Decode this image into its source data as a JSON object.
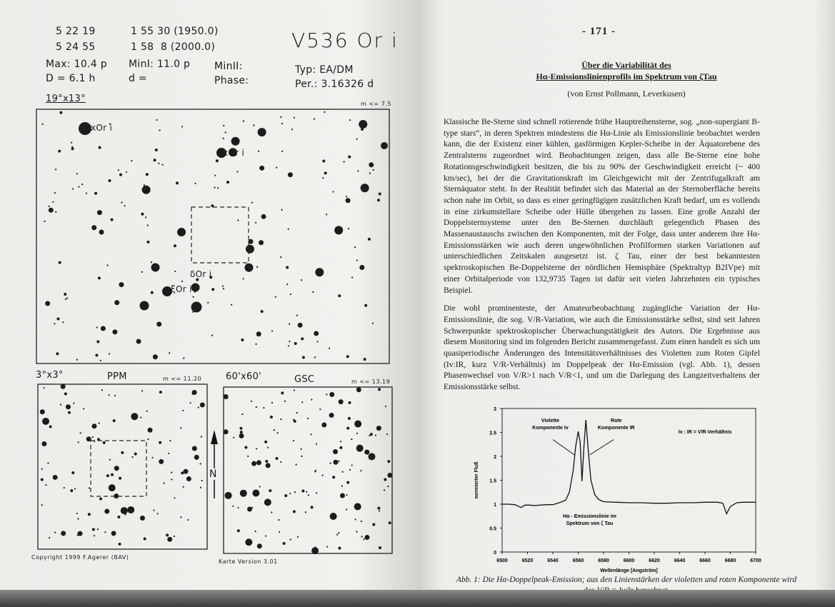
{
  "left_page": {
    "coords": {
      "ra_1950": "5 22 19",
      "ra_2000": "5 24 55",
      "dec_1950": "1 55 30 (1950.0)",
      "dec_2000": "1 58  8 (2000.0)"
    },
    "star_name": "V536 Or i",
    "max": "Max: 10.4 p",
    "min1": "MinI: 11.0 p",
    "min2": "MinII:",
    "duration": "D = 6.1 h",
    "d": "d =",
    "phase": "Phase:",
    "type": "Typ: EA/DM",
    "period": "Per.: 3.16326 d",
    "chart_main": {
      "field": "19°x13°",
      "limit": "m <= 7.5",
      "labels": [
        "xOr i",
        "xOr i",
        "δOr i",
        "ξOr i"
      ]
    },
    "chart_ppm": {
      "field": "3°x3°",
      "catalog": "PPM",
      "limit": "m <= 11.20"
    },
    "chart_gsc": {
      "field": "60'x60'",
      "catalog": "GSC",
      "limit": "m <= 13.19"
    },
    "north_label": "N",
    "copyright": "Copyright 1999 F.Agerer (BAV)",
    "version": "Karte Version 3.01"
  },
  "right_page": {
    "page_number": "- 171 -",
    "title_line1": "Über die Variabilität des",
    "title_line2": "Hα-Emissionslinienprofils im Spektrum von ζTau",
    "author": "(von Ernst Pollmann, Leverkusen)",
    "paragraphs": [
      "Klassische Be-Sterne sind schnell rotierende frühe Hauptreihensterne, sog. „non-supergiant B-type stars“, in deren Spektren mindestens die Hα-Linie als Emissionslinie beobachtet werden kann, die der Existenz einer kühlen, gasförmigen Kepler-Scheibe in der Äquatorebene des Zentralsterns zugeordnet wird. Beobachtungen zeigen, dass alle Be-Sterne eine hohe Rotationsgeschwindigkeit besitzen, die bis zu 90% der Geschwindigkeit erreicht (~ 400 km/sec), bei der die Gravitationskraft im Gleichgewicht mit der Zentrifugalkraft am Sternäquator steht. In der Realität befindet sich das Material an der Sternoberfläche bereits schon nahe im Orbit, so dass es einer geringfügigen zusätzlichen Kraft bedarf, um es vollends in eine zirkumstellare Scheibe oder Hülle übergehen zu lassen. Eine große Anzahl der Doppelsternsysteme unter den Be-Sternen durchläuft gelegentlich Phasen des Massenaustauschs zwischen den Komponenten, mit der Folge, dass unter anderem ihre Hα-Emissionsstärken wie auch deren ungewöhnlichen Profilformen starken Variationen auf unterschiedlichen Zeitskalen ausgesetzt ist. ζ Tau, einer der best bekanntesten spektroskopischen Be-Doppelsterne der nördlichen Hemisphäre (Spektraltyp B2IVpe) mit einer Orbitalperiode von 132,9735 Tagen ist dafür seit vielen Jahrzehnten ein typisches Beispiel.",
      "Die wohl prominenteste, der Amateurbeobachtung zugängliche Variation der Hα-Emissionslinie, die sog. V/R-Variation, wie auch die Emissionsstärke selbst, sind seit Jahren Schwerpunkte spektroskopischer Überwachungstätigkeit des Autors. Die Ergebnisse aus diesem Monitoring sind im folgenden Bericht zusammengefasst. Zum einen handelt es sich um quasiperiodische Änderungen des Intensitätsverhältnisses des Violetten zum Roten Gipfel (Iv:IR, kurz V/R-Verhältnis) im Doppelpeak der Hα-Emission (vgl. Abb. 1), dessen Phasenwechsel von V/R>1 nach V/R<1, und um die Darlegung des Langzeitverhaltens der Emissionsstärke selbst."
    ],
    "caption_line1": "Abb. 1: Die Hα-Doppelpeak-Emission; aus den Linienstärken der violetten und roten Komponente wird",
    "caption_line2": "das V/R = Iv/Ir berechnet."
  },
  "chart_data": {
    "type": "line",
    "title": "",
    "xlabel": "Wellenlänge [Angström]",
    "ylabel": "normierter Fluß",
    "xlim": [
      6500,
      6700
    ],
    "ylim": [
      0,
      3
    ],
    "xticks": [
      6500,
      6520,
      6540,
      6560,
      6580,
      6600,
      6620,
      6640,
      6660,
      6680,
      6700
    ],
    "yticks": [
      0,
      0.5,
      1,
      1.5,
      2,
      2.5,
      3
    ],
    "grid": false,
    "annotations": [
      {
        "text": [
          "Violette",
          "Komponente Iv"
        ],
        "x": 6555,
        "y": 2.0
      },
      {
        "text": [
          "Rote",
          "Komponente IR"
        ],
        "x": 6570,
        "y": 2.0
      },
      {
        "text": [
          "Iv : IR = V/R-Verhältnis"
        ],
        "x": 6640,
        "y": 2.5
      },
      {
        "text": [
          "Hα - Emissionslinie im",
          "Spektrum von ζ Tau"
        ],
        "x": 6545,
        "y": 0.6
      }
    ],
    "x": [
      6500,
      6505,
      6510,
      6515,
      6518,
      6522,
      6525,
      6530,
      6535,
      6540,
      6545,
      6550,
      6553,
      6556,
      6558,
      6560,
      6561.5,
      6563,
      6564.5,
      6566,
      6568,
      6570,
      6573,
      6576,
      6580,
      6590,
      6600,
      6610,
      6620,
      6630,
      6640,
      6650,
      6660,
      6670,
      6674,
      6677,
      6680,
      6685,
      6690,
      6700
    ],
    "y": [
      1.0,
      1.0,
      0.99,
      0.93,
      0.98,
      0.98,
      0.97,
      0.98,
      0.99,
      0.99,
      1.03,
      1.08,
      1.25,
      1.7,
      2.2,
      2.52,
      2.3,
      1.48,
      2.2,
      2.76,
      2.1,
      1.5,
      1.2,
      1.1,
      1.05,
      1.04,
      1.03,
      1.03,
      1.02,
      1.02,
      1.03,
      1.03,
      1.04,
      1.04,
      1.02,
      0.8,
      0.95,
      1.03,
      1.04,
      1.04
    ]
  }
}
